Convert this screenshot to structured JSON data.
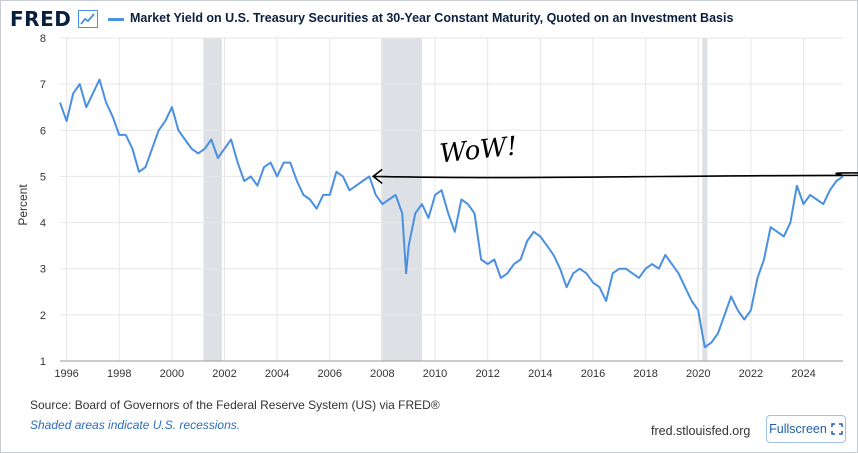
{
  "header": {
    "logo": "FRED",
    "title": "Market Yield on U.S. Treasury Securities at 30-Year Constant Maturity, Quoted on an Investment Basis"
  },
  "footer": {
    "source": "Source: Board of Governors of the Federal Reserve System (US) via FRED®",
    "note": "Shaded areas indicate U.S. recessions.",
    "site": "fred.stlouisfed.org",
    "fullscreen_label": "Fullscreen"
  },
  "colors": {
    "series": "#4a90e2",
    "recession": "#dde1e6",
    "grid": "#e6e6e6",
    "annotation": "#000000"
  },
  "annotation": {
    "text": "WoW!"
  },
  "chart_data": {
    "type": "line",
    "title": "Market Yield on U.S. Treasury Securities at 30-Year Constant Maturity, Quoted on an Investment Basis",
    "ylabel": "Percent",
    "xlabel": "",
    "ylim": [
      1,
      8
    ],
    "xlim": [
      1995.75,
      2025.5
    ],
    "yticks": [
      "1",
      "2",
      "3",
      "4",
      "5",
      "6",
      "7",
      "8"
    ],
    "xticks": [
      "1996",
      "1998",
      "2000",
      "2002",
      "2004",
      "2006",
      "2008",
      "2010",
      "2012",
      "2014",
      "2016",
      "2018",
      "2020",
      "2022",
      "2024"
    ],
    "grid": true,
    "recessions": [
      [
        2001.2,
        2001.9
      ],
      [
        2007.95,
        2009.5
      ],
      [
        2020.15,
        2020.35
      ]
    ],
    "annotation_level": 5.0,
    "series": [
      {
        "name": "Market Yield on U.S. Treasury Securities at 30-Year Constant Maturity, Quoted on an Investment Basis",
        "x": [
          1995.75,
          1996.0,
          1996.25,
          1996.5,
          1996.75,
          1997.0,
          1997.25,
          1997.5,
          1997.75,
          1998.0,
          1998.25,
          1998.5,
          1998.75,
          1999.0,
          1999.25,
          1999.5,
          1999.75,
          2000.0,
          2000.25,
          2000.5,
          2000.75,
          2001.0,
          2001.25,
          2001.5,
          2001.75,
          2002.0,
          2002.25,
          2002.5,
          2002.75,
          2003.0,
          2003.25,
          2003.5,
          2003.75,
          2004.0,
          2004.25,
          2004.5,
          2004.75,
          2005.0,
          2005.25,
          2005.5,
          2005.75,
          2006.0,
          2006.25,
          2006.5,
          2006.75,
          2007.0,
          2007.25,
          2007.5,
          2007.75,
          2008.0,
          2008.25,
          2008.5,
          2008.75,
          2008.9,
          2009.0,
          2009.25,
          2009.5,
          2009.75,
          2010.0,
          2010.25,
          2010.5,
          2010.75,
          2011.0,
          2011.25,
          2011.5,
          2011.75,
          2012.0,
          2012.25,
          2012.5,
          2012.75,
          2013.0,
          2013.25,
          2013.5,
          2013.75,
          2014.0,
          2014.25,
          2014.5,
          2014.75,
          2015.0,
          2015.25,
          2015.5,
          2015.75,
          2016.0,
          2016.25,
          2016.5,
          2016.75,
          2017.0,
          2017.25,
          2017.5,
          2017.75,
          2018.0,
          2018.25,
          2018.5,
          2018.75,
          2019.0,
          2019.25,
          2019.5,
          2019.75,
          2020.0,
          2020.15,
          2020.25,
          2020.5,
          2020.75,
          2021.0,
          2021.25,
          2021.5,
          2021.75,
          2022.0,
          2022.25,
          2022.5,
          2022.75,
          2023.0,
          2023.25,
          2023.5,
          2023.75,
          2024.0,
          2024.25,
          2024.5,
          2024.75,
          2025.0,
          2025.25,
          2025.5
        ],
        "values": [
          6.6,
          6.2,
          6.8,
          7.0,
          6.5,
          6.8,
          7.1,
          6.6,
          6.3,
          5.9,
          5.9,
          5.6,
          5.1,
          5.2,
          5.6,
          6.0,
          6.2,
          6.5,
          6.0,
          5.8,
          5.6,
          5.5,
          5.6,
          5.8,
          5.4,
          5.6,
          5.8,
          5.3,
          4.9,
          5.0,
          4.8,
          5.2,
          5.3,
          5.0,
          5.3,
          5.3,
          4.9,
          4.6,
          4.5,
          4.3,
          4.6,
          4.6,
          5.1,
          5.0,
          4.7,
          4.8,
          4.9,
          5.0,
          4.6,
          4.4,
          4.5,
          4.6,
          4.2,
          2.9,
          3.5,
          4.2,
          4.4,
          4.1,
          4.6,
          4.7,
          4.2,
          3.8,
          4.5,
          4.4,
          4.2,
          3.2,
          3.1,
          3.2,
          2.8,
          2.9,
          3.1,
          3.2,
          3.6,
          3.8,
          3.7,
          3.5,
          3.3,
          3.0,
          2.6,
          2.9,
          3.0,
          2.9,
          2.7,
          2.6,
          2.3,
          2.9,
          3.0,
          3.0,
          2.9,
          2.8,
          3.0,
          3.1,
          3.0,
          3.3,
          3.1,
          2.9,
          2.6,
          2.3,
          2.1,
          1.6,
          1.3,
          1.4,
          1.6,
          2.0,
          2.4,
          2.1,
          1.9,
          2.1,
          2.8,
          3.2,
          3.9,
          3.8,
          3.7,
          4.0,
          4.8,
          4.4,
          4.6,
          4.5,
          4.4,
          4.7,
          4.9,
          5.0
        ]
      }
    ]
  }
}
